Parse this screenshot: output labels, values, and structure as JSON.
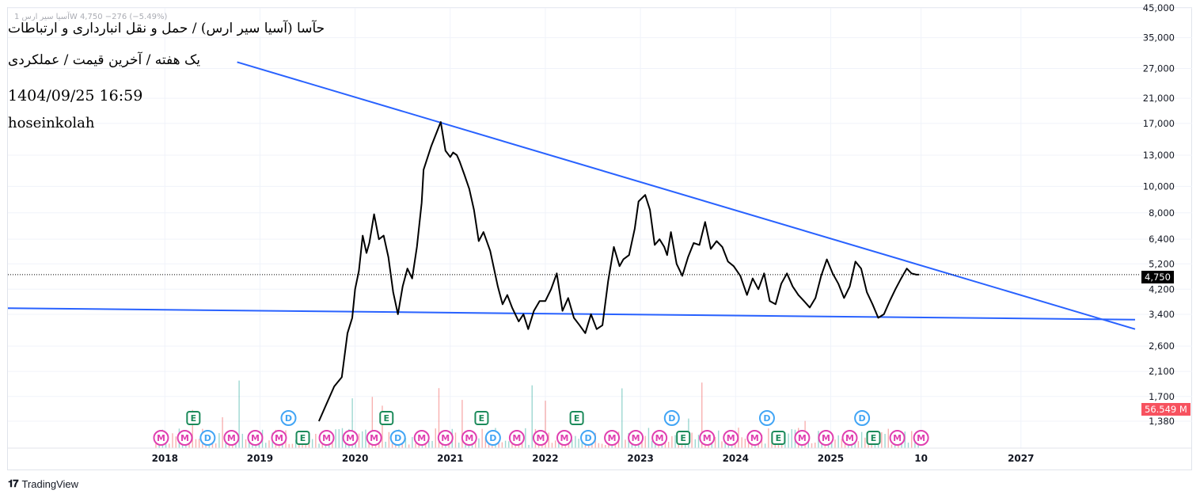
{
  "header": {
    "title": "حآسا (آسیا سیر ارس) / حمل و نقل انبارداری و ارتباطات",
    "subtitle": "یک هفته / آخرین قیمت / عملکردی",
    "datetime": "1404/09/25 16:59",
    "user": "hoseinkolah",
    "legend_faint": "آسیا سیر ارس 1W  4,750  −276 (−5.49%)"
  },
  "branding": {
    "name": "TradingView",
    "logo_icon": "tradingview-logo-icon"
  },
  "colors": {
    "price_line": "#000000",
    "trendline": "#2962ff",
    "volume_up": "#26a69a",
    "volume_down": "#ef5350",
    "event_m": "#e040b0",
    "event_d": "#42a5f5",
    "event_e": "#1b8a5a",
    "last_price_bg": "#000000",
    "volume_tag_bg": "#f7525f"
  },
  "price_tag": "4,750",
  "volume_tag": "56.549 M",
  "chart_data": {
    "type": "line",
    "scale": "log",
    "ylim": [
      1100,
      45000
    ],
    "xlim": [
      2016.35,
      2028.25
    ],
    "y_ticks": [
      "45,000",
      "35,000",
      "27,000",
      "21,000",
      "17,000",
      "13,000",
      "10,000",
      "8,000",
      "6,400",
      "5,200",
      "4,200",
      "3,400",
      "2,600",
      "2,100",
      "1,700",
      "1,380"
    ],
    "y_tick_values": [
      45000,
      35000,
      27000,
      21000,
      17000,
      13000,
      10000,
      8000,
      6400,
      5200,
      4200,
      3400,
      2600,
      2100,
      1700,
      1380
    ],
    "x_ticks": [
      "2018",
      "2019",
      "2020",
      "2021",
      "2022",
      "2023",
      "2024",
      "2025",
      "10",
      "2027"
    ],
    "x_tick_values": [
      2018.0,
      2019.0,
      2020.0,
      2021.0,
      2022.0,
      2023.0,
      2024.0,
      2025.0,
      2025.95,
      2027.0
    ],
    "series": [
      {
        "x": [
          2019.62,
          2019.7,
          2019.78,
          2019.86,
          2019.92,
          2019.97,
          2020.0,
          2020.04,
          2020.08,
          2020.12,
          2020.15,
          2020.2,
          2020.25,
          2020.3,
          2020.35,
          2020.4,
          2020.45,
          2020.5,
          2020.55,
          2020.6,
          2020.65,
          2020.7,
          2020.72,
          2020.8,
          2020.9,
          2020.95,
          2021.0,
          2021.03,
          2021.07,
          2021.1,
          2021.15,
          2021.2,
          2021.25,
          2021.3,
          2021.35,
          2021.42,
          2021.5,
          2021.55,
          2021.6,
          2021.65,
          2021.72,
          2021.77,
          2021.82,
          2021.88,
          2021.94,
          2022.0,
          2022.06,
          2022.12,
          2022.18,
          2022.24,
          2022.3,
          2022.36,
          2022.42,
          2022.48,
          2022.54,
          2022.6,
          2022.66,
          2022.72,
          2022.78,
          2022.82,
          2022.88,
          2022.94,
          2022.98,
          2023.05,
          2023.1,
          2023.15,
          2023.2,
          2023.25,
          2023.28,
          2023.32,
          2023.38,
          2023.44,
          2023.5,
          2023.56,
          2023.62,
          2023.68,
          2023.74,
          2023.8,
          2023.86,
          2023.92,
          2023.98,
          2024.05,
          2024.12,
          2024.18,
          2024.24,
          2024.3,
          2024.36,
          2024.42,
          2024.48,
          2024.54,
          2024.6,
          2024.66,
          2024.72,
          2024.78,
          2024.84,
          2024.9,
          2024.96,
          2025.02,
          2025.08,
          2025.14,
          2025.2,
          2025.26,
          2025.32,
          2025.38,
          2025.44,
          2025.5,
          2025.56,
          2025.62,
          2025.68,
          2025.74,
          2025.8,
          2025.85,
          2025.9,
          2025.93
        ],
        "values": [
          1380,
          1600,
          1850,
          2000,
          2900,
          3300,
          4200,
          4900,
          6600,
          5700,
          6200,
          7900,
          6400,
          6600,
          5500,
          4100,
          3400,
          4300,
          5000,
          4600,
          6000,
          8700,
          11500,
          14000,
          17200,
          13500,
          12800,
          13300,
          13000,
          12300,
          11000,
          9800,
          8200,
          6300,
          6800,
          5800,
          4300,
          3700,
          4000,
          3600,
          3200,
          3400,
          3000,
          3500,
          3800,
          3800,
          4200,
          4800,
          3500,
          3900,
          3300,
          3100,
          2900,
          3400,
          3000,
          3100,
          4500,
          6000,
          5100,
          5400,
          5600,
          7000,
          8800,
          9300,
          8200,
          6100,
          6400,
          6000,
          5600,
          6800,
          5200,
          4700,
          5500,
          6200,
          6100,
          7400,
          5900,
          6300,
          6000,
          5300,
          5100,
          4700,
          4000,
          4600,
          4200,
          4800,
          3800,
          3700,
          4400,
          4800,
          4300,
          4000,
          3800,
          3600,
          3900,
          4700,
          5400,
          4800,
          4400,
          3900,
          4300,
          5300,
          5000,
          4100,
          3700,
          3300,
          3400,
          3800,
          4200,
          4600,
          5000,
          4800,
          4750,
          4750
        ]
      }
    ],
    "trendlines": [
      {
        "from": [
          2018.76,
          28500
        ],
        "to": [
          2028.2,
          3000
        ]
      },
      {
        "from": [
          2016.35,
          3580
        ],
        "to": [
          2028.2,
          3250
        ]
      }
    ],
    "last_price": 4750,
    "last_change": "−276 (−5.49%)"
  },
  "events": {
    "top_row": [
      {
        "label": "E",
        "x": 2018.3
      },
      {
        "label": "D",
        "x": 2019.3
      },
      {
        "label": "E",
        "x": 2020.33
      },
      {
        "label": "E",
        "x": 2021.33
      },
      {
        "label": "E",
        "x": 2022.33
      },
      {
        "label": "D",
        "x": 2023.33
      },
      {
        "label": "D",
        "x": 2024.33
      },
      {
        "label": "D",
        "x": 2025.33
      }
    ],
    "bottom_row": [
      {
        "label": "M",
        "x": 2017.96
      },
      {
        "label": "M",
        "x": 2018.21
      },
      {
        "label": "D",
        "x": 2018.45
      },
      {
        "label": "M",
        "x": 2018.7
      },
      {
        "label": "M",
        "x": 2018.95
      },
      {
        "label": "M",
        "x": 2019.2
      },
      {
        "label": "E",
        "x": 2019.45
      },
      {
        "label": "M",
        "x": 2019.7
      },
      {
        "label": "M",
        "x": 2019.95
      },
      {
        "label": "M",
        "x": 2020.2
      },
      {
        "label": "D",
        "x": 2020.45
      },
      {
        "label": "M",
        "x": 2020.7
      },
      {
        "label": "M",
        "x": 2020.95
      },
      {
        "label": "M",
        "x": 2021.2
      },
      {
        "label": "D",
        "x": 2021.45
      },
      {
        "label": "M",
        "x": 2021.7
      },
      {
        "label": "M",
        "x": 2021.95
      },
      {
        "label": "M",
        "x": 2022.2
      },
      {
        "label": "D",
        "x": 2022.45
      },
      {
        "label": "M",
        "x": 2022.7
      },
      {
        "label": "M",
        "x": 2022.95
      },
      {
        "label": "M",
        "x": 2023.2
      },
      {
        "label": "E",
        "x": 2023.45
      },
      {
        "label": "M",
        "x": 2023.7
      },
      {
        "label": "M",
        "x": 2023.95
      },
      {
        "label": "M",
        "x": 2024.2
      },
      {
        "label": "E",
        "x": 2024.45
      },
      {
        "label": "M",
        "x": 2024.7
      },
      {
        "label": "M",
        "x": 2024.95
      },
      {
        "label": "M",
        "x": 2025.2
      },
      {
        "label": "E",
        "x": 2025.45
      },
      {
        "label": "M",
        "x": 2025.7
      },
      {
        "label": "M",
        "x": 2025.95
      }
    ]
  }
}
